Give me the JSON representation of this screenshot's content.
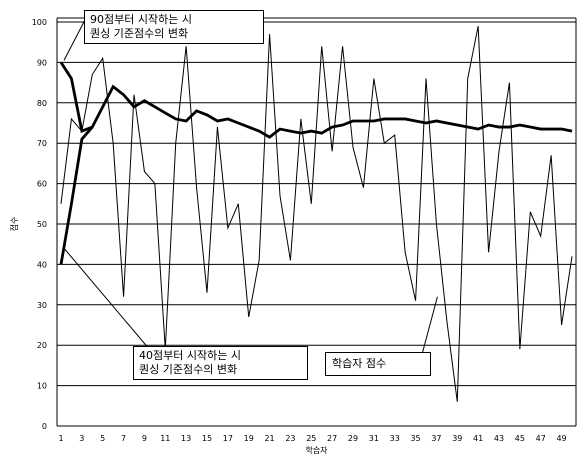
{
  "chart_data": {
    "type": "line",
    "xlabel": "학습자",
    "ylabel": "점수",
    "ylim": [
      0,
      100
    ],
    "yticks": [
      0,
      10,
      20,
      30,
      40,
      50,
      60,
      70,
      80,
      90,
      100
    ],
    "xlim": [
      1,
      50
    ],
    "xticks": [
      1,
      3,
      5,
      7,
      9,
      11,
      13,
      15,
      17,
      19,
      21,
      23,
      25,
      27,
      29,
      31,
      33,
      35,
      37,
      39,
      41,
      43,
      45,
      47,
      49
    ],
    "grid": "horizontal",
    "series": [
      {
        "name": "학습자 점수",
        "x": [
          1,
          2,
          3,
          4,
          5,
          6,
          7,
          8,
          9,
          10,
          11,
          12,
          13,
          14,
          15,
          16,
          17,
          18,
          19,
          20,
          21,
          22,
          23,
          24,
          25,
          26,
          27,
          28,
          29,
          30,
          31,
          32,
          33,
          34,
          35,
          36,
          37,
          38,
          39,
          40,
          41,
          42,
          43,
          44,
          45,
          46,
          47,
          48,
          49,
          50
        ],
        "y": [
          55,
          76,
          73,
          87,
          91,
          70,
          32,
          82,
          63,
          60,
          19,
          70,
          94,
          59,
          33,
          74,
          49,
          55,
          27,
          41,
          97,
          57,
          41,
          76,
          55,
          94,
          68,
          94,
          69,
          59,
          86,
          70,
          72,
          43,
          31,
          86,
          50,
          26,
          6,
          86,
          99,
          43,
          68,
          85,
          19,
          53,
          47,
          67,
          25,
          42
        ]
      },
      {
        "name": "90점부터 시작하는 시퀀싱 기준점수의 변화",
        "x": [
          1,
          2,
          3,
          4,
          5,
          6,
          7,
          8,
          9,
          10,
          11,
          12,
          13,
          14,
          15,
          16,
          17,
          18,
          19,
          20,
          21,
          22,
          23,
          24,
          25,
          26,
          27,
          28,
          29,
          30,
          31,
          32,
          33,
          34,
          35,
          36,
          37,
          38,
          39,
          40,
          41,
          42,
          43,
          44,
          45,
          46,
          47,
          48,
          49,
          50
        ],
        "y": [
          90,
          86,
          73,
          74,
          79,
          84,
          82,
          79,
          80.5,
          79,
          77.5,
          76,
          75.5,
          78,
          77,
          75.5,
          76,
          75,
          74,
          73,
          71.5,
          73.5,
          73,
          72.5,
          73,
          72.5,
          74,
          74.5,
          75.5,
          75.5,
          75.5,
          76,
          76,
          76,
          75.5,
          75,
          75.5,
          75,
          74.5,
          74,
          73.5,
          74.5,
          74,
          74,
          74.5,
          74,
          73.5,
          73.5,
          73.5,
          73
        ]
      },
      {
        "name": "40점부터 시작하는 시퀀싱 기준점수의 변화",
        "x": [
          1,
          2,
          3,
          4
        ],
        "y": [
          40,
          55,
          71,
          74
        ]
      }
    ]
  },
  "annotations": {
    "top_box": "90점부터 시작하는 시\n퀀싱 기준점수의 변화",
    "bottom_box": "40점부터 시작하는 시\n퀀싱 기준점수의 변화",
    "student_box": "학습자 점수"
  }
}
